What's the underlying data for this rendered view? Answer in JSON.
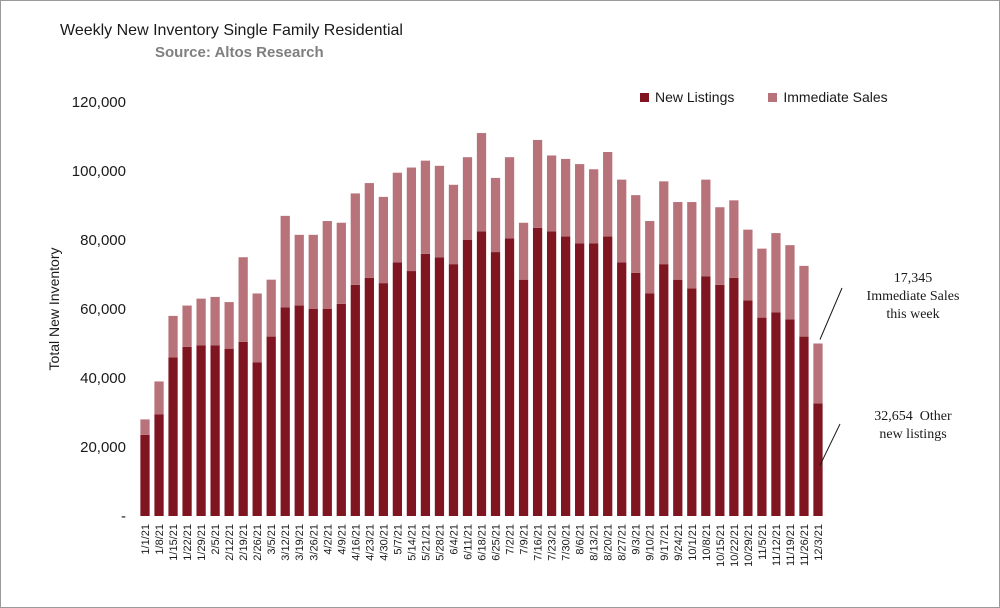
{
  "chart_data": {
    "type": "bar",
    "stacked": true,
    "title": "Weekly New Inventory Single Family Residential",
    "subtitle": "Source: Altos Research",
    "ylabel": "Total New Inventory",
    "xlabel": "",
    "ylim": [
      0,
      120000
    ],
    "yticks": [
      0,
      20000,
      40000,
      60000,
      80000,
      100000,
      120000
    ],
    "ytick_labels": [
      "-",
      "20,000",
      "40,000",
      "60,000",
      "80,000",
      "100,000",
      "120,000"
    ],
    "grid": false,
    "legend_position": "top-right",
    "categories": [
      "1/1/21",
      "1/8/21",
      "1/15/21",
      "1/22/21",
      "1/29/21",
      "2/5/21",
      "2/12/21",
      "2/19/21",
      "2/26/21",
      "3/5/21",
      "3/12/21",
      "3/19/21",
      "3/26/21",
      "4/2/21",
      "4/9/21",
      "4/16/21",
      "4/23/21",
      "4/30/21",
      "5/7/21",
      "5/14/21",
      "5/21/21",
      "5/28/21",
      "6/4/21",
      "6/11/21",
      "6/18/21",
      "6/25/21",
      "7/2/21",
      "7/9/21",
      "7/16/21",
      "7/23/21",
      "7/30/21",
      "8/6/21",
      "8/13/21",
      "8/20/21",
      "8/27/21",
      "9/3/21",
      "9/10/21",
      "9/17/21",
      "9/24/21",
      "10/1/21",
      "10/8/21",
      "10/15/21",
      "10/22/21",
      "10/29/21",
      "11/5/21",
      "11/12/21",
      "11/19/21",
      "11/26/21",
      "12/3/21"
    ],
    "series": [
      {
        "name": "New Listings",
        "color": "#7f1520",
        "values": [
          23500,
          29500,
          46000,
          49000,
          49500,
          49500,
          48500,
          50500,
          44500,
          52000,
          60500,
          61000,
          60000,
          60000,
          61500,
          67000,
          69000,
          67500,
          73500,
          71000,
          76000,
          75000,
          73000,
          80000,
          82500,
          76500,
          80500,
          68500,
          83500,
          82500,
          81000,
          79000,
          79000,
          81000,
          73500,
          70500,
          64500,
          73000,
          68500,
          66000,
          69500,
          67000,
          69000,
          62500,
          57500,
          59000,
          57000,
          52000,
          32654
        ]
      },
      {
        "name": "Immediate Sales",
        "color": "#b87279",
        "values": [
          4500,
          9500,
          12000,
          12000,
          13500,
          14000,
          13500,
          24500,
          20000,
          16500,
          26500,
          20500,
          21500,
          25500,
          23500,
          26500,
          27500,
          25000,
          26000,
          30000,
          27000,
          26500,
          23000,
          24000,
          28500,
          21500,
          23500,
          16500,
          25500,
          22000,
          22500,
          23000,
          21500,
          24500,
          24000,
          22500,
          21000,
          24000,
          22500,
          25000,
          28000,
          22500,
          22500,
          20500,
          20000,
          23000,
          21500,
          20500,
          17345
        ]
      }
    ],
    "annotations": [
      {
        "value": "17,345",
        "lines": [
          "Immediate Sales",
          "this week"
        ]
      },
      {
        "value": "32,654",
        "suffix": "Other",
        "lines": [
          "new listings"
        ]
      }
    ]
  }
}
